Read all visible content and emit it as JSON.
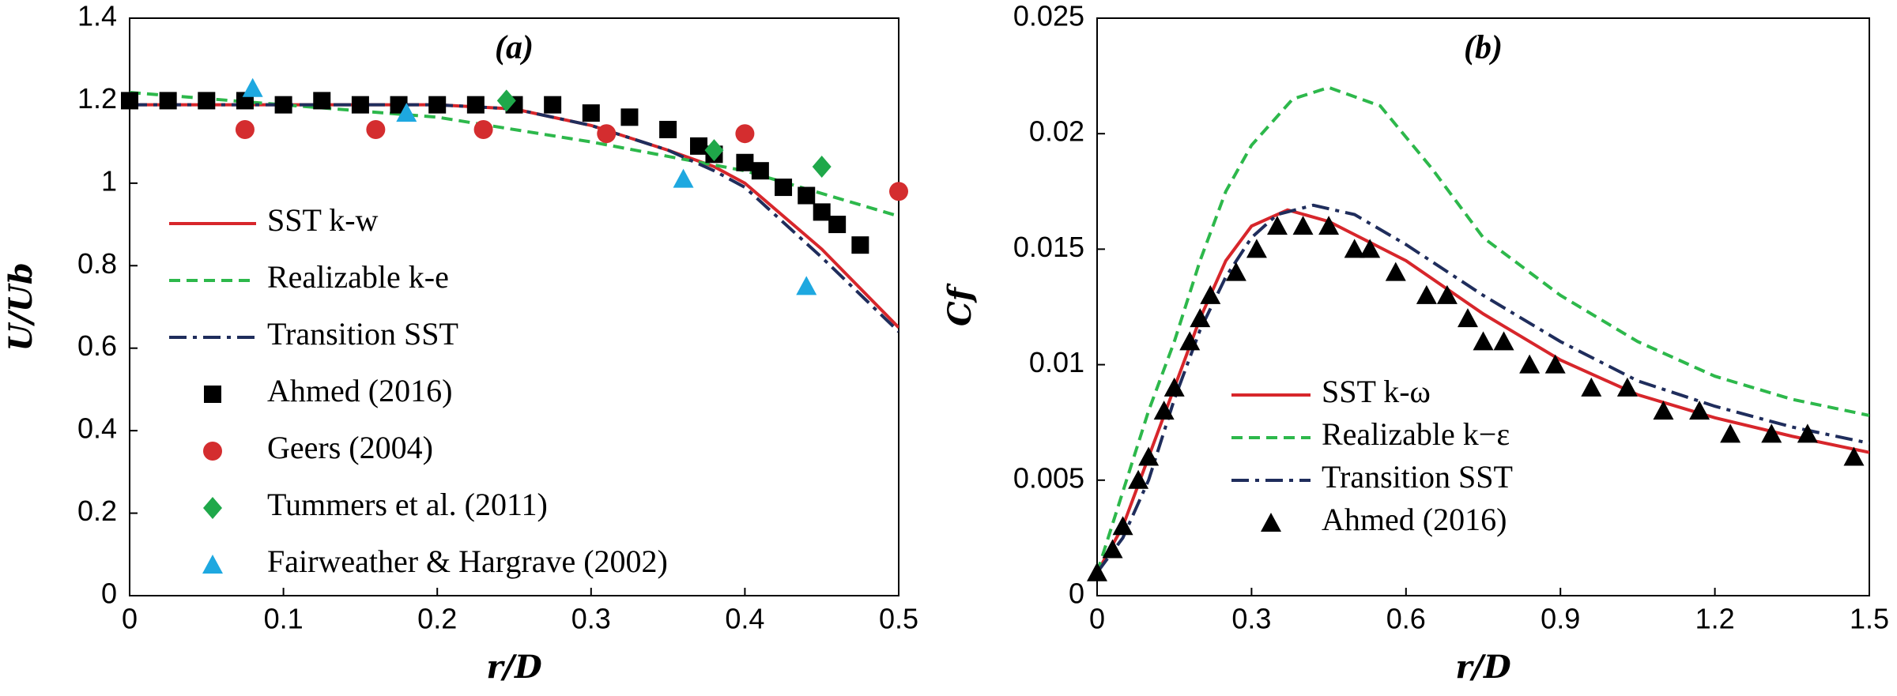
{
  "chart_data": [
    {
      "type": "line",
      "title": "(a)",
      "xlabel": "r/D",
      "ylabel": "U/Ub",
      "xlim": [
        0,
        0.5
      ],
      "xticks": [
        0,
        0.1,
        0.2,
        0.3,
        0.4,
        0.5
      ],
      "ylim": [
        0,
        1.4
      ],
      "yticks": [
        0,
        0.2,
        0.4,
        0.6,
        0.8,
        1,
        1.2,
        1.4
      ],
      "legend_position": "center left",
      "series": [
        {
          "name": "SST k-w",
          "style": "line",
          "dash": "solid",
          "color": "#d7262b",
          "x": [
            0,
            0.1,
            0.2,
            0.25,
            0.3,
            0.35,
            0.38,
            0.4,
            0.45,
            0.5
          ],
          "values": [
            1.19,
            1.19,
            1.19,
            1.18,
            1.14,
            1.08,
            1.04,
            1.0,
            0.84,
            0.65
          ]
        },
        {
          "name": "Realizable k-e",
          "style": "line",
          "dash": "dashed",
          "color": "#2db84b",
          "x": [
            0,
            0.1,
            0.2,
            0.3,
            0.4,
            0.5
          ],
          "values": [
            1.22,
            1.19,
            1.16,
            1.1,
            1.03,
            0.92
          ]
        },
        {
          "name": "Transition SST",
          "style": "line",
          "dash": "dashdot",
          "color": "#1f2d5c",
          "x": [
            0,
            0.1,
            0.2,
            0.25,
            0.3,
            0.35,
            0.38,
            0.4,
            0.45,
            0.5
          ],
          "values": [
            1.19,
            1.19,
            1.19,
            1.18,
            1.14,
            1.08,
            1.03,
            0.99,
            0.82,
            0.64
          ]
        },
        {
          "name": "Ahmed (2016)",
          "style": "marker",
          "marker": "square",
          "color": "#000000",
          "x": [
            0,
            0.025,
            0.05,
            0.075,
            0.1,
            0.125,
            0.15,
            0.175,
            0.2,
            0.225,
            0.25,
            0.275,
            0.3,
            0.325,
            0.35,
            0.37,
            0.38,
            0.4,
            0.41,
            0.425,
            0.44,
            0.45,
            0.46,
            0.475
          ],
          "values": [
            1.2,
            1.2,
            1.2,
            1.2,
            1.19,
            1.2,
            1.19,
            1.19,
            1.19,
            1.19,
            1.19,
            1.19,
            1.17,
            1.16,
            1.13,
            1.09,
            1.07,
            1.05,
            1.03,
            0.99,
            0.97,
            0.93,
            0.9,
            0.85
          ]
        },
        {
          "name": "Geers (2004)",
          "style": "marker",
          "marker": "circle",
          "color": "#d42d2f",
          "x": [
            0.075,
            0.16,
            0.23,
            0.31,
            0.4,
            0.5
          ],
          "values": [
            1.13,
            1.13,
            1.13,
            1.12,
            1.12,
            0.98
          ]
        },
        {
          "name": "Tummers et al. (2011)",
          "style": "marker",
          "marker": "diamond",
          "color": "#1fa84a",
          "x": [
            0.245,
            0.38,
            0.45
          ],
          "values": [
            1.2,
            1.08,
            1.04
          ]
        },
        {
          "name": "Fairweather & Hargrave (2002)",
          "style": "marker",
          "marker": "triangle",
          "color": "#1ea8e0",
          "x": [
            0.08,
            0.18,
            0.36,
            0.44
          ],
          "values": [
            1.23,
            1.17,
            1.01,
            0.75
          ]
        }
      ]
    },
    {
      "type": "line",
      "title": "(b)",
      "xlabel": "r/D",
      "ylabel": "Cf",
      "xlim": [
        0,
        1.5
      ],
      "xticks": [
        0,
        0.3,
        0.6,
        0.9,
        1.2,
        1.5
      ],
      "ylim": [
        0,
        0.025
      ],
      "yticks": [
        0,
        0.005,
        0.01,
        0.015,
        0.02,
        0.025
      ],
      "legend_position": "lower center",
      "series": [
        {
          "name": "SST k-ω",
          "style": "line",
          "dash": "solid",
          "color": "#d7262b",
          "x": [
            0,
            0.05,
            0.1,
            0.15,
            0.2,
            0.25,
            0.3,
            0.37,
            0.45,
            0.6,
            0.75,
            0.9,
            1.05,
            1.2,
            1.35,
            1.5
          ],
          "values": [
            0.001,
            0.003,
            0.006,
            0.009,
            0.012,
            0.0145,
            0.016,
            0.0167,
            0.0162,
            0.0145,
            0.0122,
            0.0102,
            0.0087,
            0.0077,
            0.0069,
            0.0062
          ]
        },
        {
          "name": "Realizable k−ε",
          "style": "line",
          "dash": "dashed",
          "color": "#2db84b",
          "x": [
            0,
            0.05,
            0.1,
            0.15,
            0.2,
            0.25,
            0.3,
            0.38,
            0.45,
            0.55,
            0.65,
            0.75,
            0.9,
            1.05,
            1.2,
            1.35,
            1.5
          ],
          "values": [
            0.001,
            0.0045,
            0.008,
            0.011,
            0.0145,
            0.0175,
            0.0195,
            0.0215,
            0.022,
            0.0212,
            0.0185,
            0.0155,
            0.013,
            0.011,
            0.0095,
            0.0085,
            0.0078
          ]
        },
        {
          "name": "Transition SST",
          "style": "line",
          "dash": "dashdot",
          "color": "#1f2d5c",
          "x": [
            0,
            0.05,
            0.1,
            0.15,
            0.2,
            0.25,
            0.3,
            0.35,
            0.42,
            0.5,
            0.6,
            0.75,
            0.9,
            1.05,
            1.2,
            1.35,
            1.5
          ],
          "values": [
            0.001,
            0.0025,
            0.005,
            0.0085,
            0.0115,
            0.0138,
            0.0155,
            0.0165,
            0.0169,
            0.0165,
            0.0152,
            0.013,
            0.011,
            0.0093,
            0.0082,
            0.0073,
            0.0066
          ]
        },
        {
          "name": "Ahmed (2016)",
          "style": "marker",
          "marker": "triangle",
          "color": "#000000",
          "x": [
            0,
            0.03,
            0.05,
            0.08,
            0.1,
            0.13,
            0.15,
            0.18,
            0.2,
            0.22,
            0.27,
            0.31,
            0.35,
            0.4,
            0.45,
            0.5,
            0.53,
            0.58,
            0.64,
            0.68,
            0.72,
            0.75,
            0.79,
            0.84,
            0.89,
            0.96,
            1.03,
            1.1,
            1.17,
            1.23,
            1.31,
            1.38,
            1.47
          ],
          "values": [
            0.001,
            0.002,
            0.003,
            0.005,
            0.006,
            0.008,
            0.009,
            0.011,
            0.012,
            0.013,
            0.014,
            0.015,
            0.016,
            0.016,
            0.016,
            0.015,
            0.015,
            0.014,
            0.013,
            0.013,
            0.012,
            0.011,
            0.011,
            0.01,
            0.01,
            0.009,
            0.009,
            0.008,
            0.008,
            0.007,
            0.007,
            0.007,
            0.006
          ]
        }
      ]
    }
  ]
}
